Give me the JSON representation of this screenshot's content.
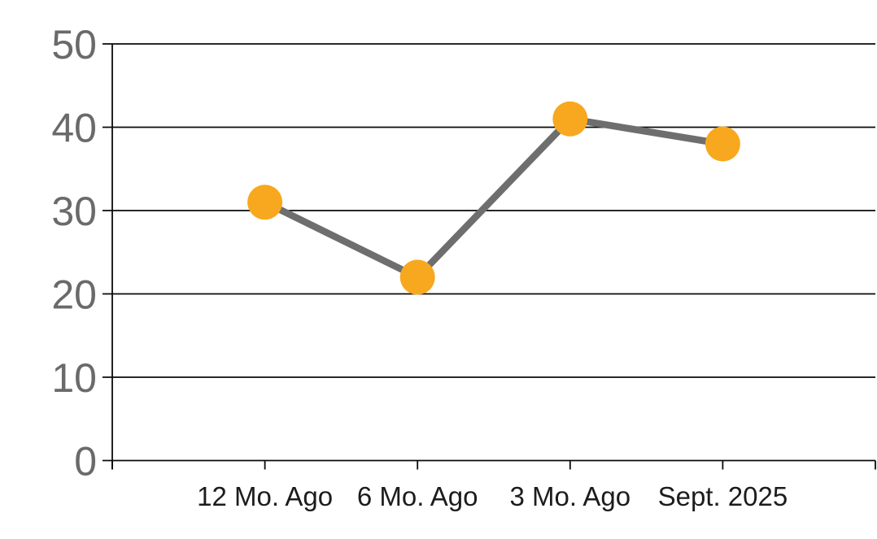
{
  "chart_data": {
    "type": "line",
    "categories": [
      "12 Mo. Ago",
      "6 Mo. Ago",
      "3 Mo. Ago",
      "Sept. 2025"
    ],
    "values": [
      31,
      22,
      41,
      38
    ],
    "title": "",
    "xlabel": "",
    "ylabel": "",
    "ylim": [
      0,
      50
    ],
    "yticks": [
      0,
      10,
      20,
      30,
      40,
      50
    ],
    "grid": true,
    "legend_position": "none",
    "marker_color": "#F7A81E",
    "line_color": "#6E6E6E",
    "gridline_color": "#0A0A0A",
    "ytick_label_color": "#6A6A6A",
    "xtick_label_color": "#1C1C1C",
    "background_color": "#FFFFFF"
  }
}
